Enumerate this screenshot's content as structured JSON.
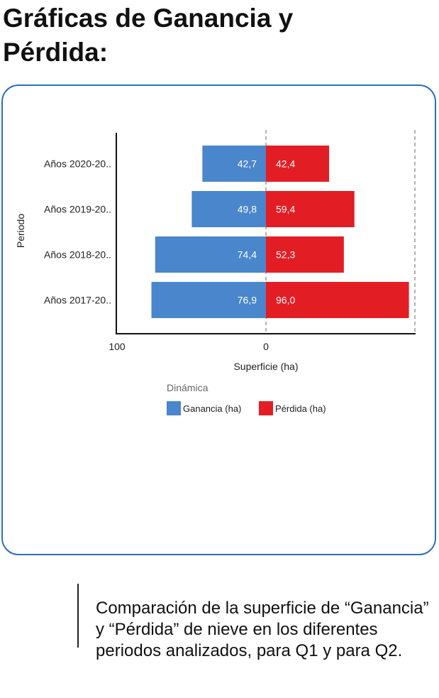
{
  "page": {
    "title": "Gráficas de Ganancia y Pérdida:",
    "caption": "Comparación de la superficie de “Ganancia” y “Pérdida” de nieve en los diferentes periodos analizados, para Q1 y para Q2."
  },
  "chart_data": {
    "type": "bar",
    "orientation": "horizontal-diverging",
    "ylabel": "Periodo",
    "xlabel": "Superficie (ha)",
    "categories": [
      "Años 2020-20..",
      "Años 2019-20..",
      "Años 2018-20..",
      "Años 2017-20.."
    ],
    "series": [
      {
        "name": "Ganancia (ha)",
        "color": "#4a86cb",
        "values": [
          42.7,
          49.8,
          74.4,
          76.9
        ],
        "labels": [
          "42,7",
          "49,8",
          "74,4",
          "76,9"
        ]
      },
      {
        "name": "Pérdida (ha)",
        "color": "#e31d24",
        "values": [
          42.4,
          59.4,
          52.3,
          96.0
        ],
        "labels": [
          "42,4",
          "59,4",
          "52,3",
          "96,0"
        ]
      }
    ],
    "x_ticks": [
      {
        "value": -100,
        "label": "100"
      },
      {
        "value": 0,
        "label": "0"
      }
    ],
    "xlim": [
      -100,
      100
    ],
    "legend": {
      "title": "Dinámica",
      "position": "bottom"
    },
    "gridlines": [
      0,
      100
    ],
    "grid": true
  }
}
